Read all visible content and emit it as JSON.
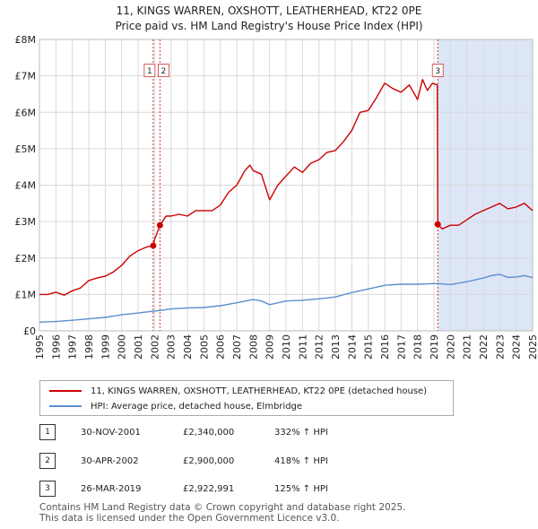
{
  "header": {
    "title_line1": "11, KINGS WARREN, OXSHOTT, LEATHERHEAD, KT22 0PE",
    "title_line2": "Price paid vs. HM Land Registry's House Price Index (HPI)"
  },
  "chart_data": {
    "type": "line",
    "title": "11, KINGS WARREN, OXSHOTT, LEATHERHEAD, KT22 0PE",
    "subtitle": "Price paid vs. HM Land Registry's House Price Index (HPI)",
    "xlabel": "",
    "ylabel": "",
    "xlim": [
      1995,
      2025
    ],
    "ylim": [
      0,
      8000000
    ],
    "x_ticks": [
      "1995",
      "1996",
      "1997",
      "1998",
      "1999",
      "2000",
      "2001",
      "2002",
      "2003",
      "2004",
      "2005",
      "2006",
      "2007",
      "2008",
      "2009",
      "2010",
      "2011",
      "2012",
      "2013",
      "2014",
      "2015",
      "2016",
      "2017",
      "2018",
      "2019",
      "2020",
      "2021",
      "2022",
      "2023",
      "2024",
      "2025"
    ],
    "y_ticks": [
      {
        "value": 0,
        "label": "£0"
      },
      {
        "value": 1000000,
        "label": "£1M"
      },
      {
        "value": 2000000,
        "label": "£2M"
      },
      {
        "value": 3000000,
        "label": "£3M"
      },
      {
        "value": 4000000,
        "label": "£4M"
      },
      {
        "value": 5000000,
        "label": "£5M"
      },
      {
        "value": 6000000,
        "label": "£6M"
      },
      {
        "value": 7000000,
        "label": "£7M"
      },
      {
        "value": 8000000,
        "label": "£8M"
      }
    ],
    "grid": true,
    "legend_position": "below",
    "series": [
      {
        "name": "11, KINGS WARREN, OXSHOTT, LEATHERHEAD, KT22 0PE (detached house)",
        "color": "#cc0000",
        "points": [
          [
            1995.0,
            1000000
          ],
          [
            1995.5,
            1000000
          ],
          [
            1996.0,
            1060000
          ],
          [
            1996.5,
            980000
          ],
          [
            1997.0,
            1100000
          ],
          [
            1997.5,
            1180000
          ],
          [
            1998.0,
            1380000
          ],
          [
            1998.5,
            1450000
          ],
          [
            1999.0,
            1500000
          ],
          [
            1999.5,
            1620000
          ],
          [
            2000.0,
            1800000
          ],
          [
            2000.5,
            2050000
          ],
          [
            2001.0,
            2200000
          ],
          [
            2001.5,
            2300000
          ],
          [
            2001.92,
            2340000
          ],
          [
            2002.0,
            2500000
          ],
          [
            2002.33,
            2900000
          ],
          [
            2002.7,
            3150000
          ],
          [
            2003.0,
            3150000
          ],
          [
            2003.5,
            3200000
          ],
          [
            2004.0,
            3150000
          ],
          [
            2004.5,
            3300000
          ],
          [
            2005.0,
            3300000
          ],
          [
            2005.5,
            3300000
          ],
          [
            2006.0,
            3450000
          ],
          [
            2006.5,
            3800000
          ],
          [
            2007.0,
            4000000
          ],
          [
            2007.5,
            4400000
          ],
          [
            2007.8,
            4550000
          ],
          [
            2008.0,
            4400000
          ],
          [
            2008.5,
            4300000
          ],
          [
            2009.0,
            3600000
          ],
          [
            2009.5,
            4000000
          ],
          [
            2010.0,
            4250000
          ],
          [
            2010.5,
            4500000
          ],
          [
            2011.0,
            4350000
          ],
          [
            2011.5,
            4600000
          ],
          [
            2012.0,
            4700000
          ],
          [
            2012.5,
            4900000
          ],
          [
            2013.0,
            4950000
          ],
          [
            2013.5,
            5200000
          ],
          [
            2014.0,
            5500000
          ],
          [
            2014.5,
            6000000
          ],
          [
            2015.0,
            6050000
          ],
          [
            2015.5,
            6400000
          ],
          [
            2016.0,
            6800000
          ],
          [
            2016.5,
            6650000
          ],
          [
            2017.0,
            6550000
          ],
          [
            2017.5,
            6750000
          ],
          [
            2018.0,
            6350000
          ],
          [
            2018.3,
            6900000
          ],
          [
            2018.6,
            6600000
          ],
          [
            2018.9,
            6800000
          ],
          [
            2019.2,
            6750000
          ],
          [
            2019.23,
            2922991
          ],
          [
            2019.5,
            2800000
          ],
          [
            2020.0,
            2900000
          ],
          [
            2020.5,
            2900000
          ],
          [
            2021.0,
            3050000
          ],
          [
            2021.5,
            3200000
          ],
          [
            2022.0,
            3300000
          ],
          [
            2022.5,
            3400000
          ],
          [
            2023.0,
            3500000
          ],
          [
            2023.5,
            3350000
          ],
          [
            2024.0,
            3400000
          ],
          [
            2024.5,
            3500000
          ],
          [
            2025.0,
            3300000
          ]
        ]
      },
      {
        "name": "HPI: Average price, detached house, Elmbridge",
        "color": "#5b8fd0",
        "points": [
          [
            1995.0,
            240000
          ],
          [
            1996.0,
            255000
          ],
          [
            1997.0,
            290000
          ],
          [
            1998.0,
            330000
          ],
          [
            1999.0,
            370000
          ],
          [
            2000.0,
            440000
          ],
          [
            2001.0,
            490000
          ],
          [
            2001.92,
            540000
          ],
          [
            2002.33,
            560000
          ],
          [
            2003.0,
            600000
          ],
          [
            2004.0,
            630000
          ],
          [
            2005.0,
            640000
          ],
          [
            2006.0,
            690000
          ],
          [
            2007.0,
            770000
          ],
          [
            2008.0,
            860000
          ],
          [
            2008.5,
            820000
          ],
          [
            2009.0,
            720000
          ],
          [
            2010.0,
            820000
          ],
          [
            2011.0,
            840000
          ],
          [
            2012.0,
            880000
          ],
          [
            2013.0,
            930000
          ],
          [
            2014.0,
            1050000
          ],
          [
            2015.0,
            1150000
          ],
          [
            2016.0,
            1250000
          ],
          [
            2017.0,
            1280000
          ],
          [
            2018.0,
            1280000
          ],
          [
            2019.23,
            1300000
          ],
          [
            2020.0,
            1270000
          ],
          [
            2021.0,
            1350000
          ],
          [
            2022.0,
            1450000
          ],
          [
            2022.5,
            1520000
          ],
          [
            2023.0,
            1550000
          ],
          [
            2023.5,
            1470000
          ],
          [
            2024.0,
            1480000
          ],
          [
            2024.5,
            1520000
          ],
          [
            2025.0,
            1460000
          ]
        ]
      }
    ],
    "sales": [
      {
        "id": "1",
        "x": 2001.92,
        "y": 2340000
      },
      {
        "id": "2",
        "x": 2002.33,
        "y": 2900000
      },
      {
        "id": "3",
        "x": 2019.23,
        "y": 2922991
      }
    ],
    "highlight_from": 2019.23,
    "colors": {
      "price": "#cc0000",
      "hpi": "#5b8fd0",
      "shade": "#dde6f7",
      "vline": "#cc3333",
      "grid": "#d9d9d9"
    }
  },
  "legend": {
    "price_label": "11, KINGS WARREN, OXSHOTT, LEATHERHEAD, KT22 0PE (detached house)",
    "hpi_label": "HPI: Average price, detached house, Elmbridge"
  },
  "transactions": [
    {
      "num": "1",
      "date": "30-NOV-2001",
      "price": "£2,340,000",
      "hpi": "332% ↑ HPI"
    },
    {
      "num": "2",
      "date": "30-APR-2002",
      "price": "£2,900,000",
      "hpi": "418% ↑ HPI"
    },
    {
      "num": "3",
      "date": "26-MAR-2019",
      "price": "£2,922,991",
      "hpi": "125% ↑ HPI"
    }
  ],
  "footer": {
    "line1": "Contains HM Land Registry data © Crown copyright and database right 2025.",
    "line2": "This data is licensed under the Open Government Licence v3.0."
  }
}
